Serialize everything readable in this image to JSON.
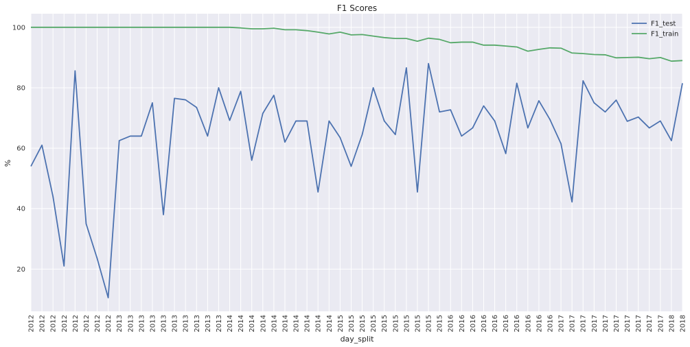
{
  "chart_data": {
    "type": "line",
    "title": "F1 Scores",
    "xlabel": "day_split",
    "ylabel": "%",
    "ylim": [
      6,
      104.5
    ],
    "yticks": [
      20,
      40,
      60,
      80,
      100
    ],
    "grid": true,
    "legend_position": "top-right",
    "categories": [
      "2012",
      "2012",
      "2012",
      "2012",
      "2012",
      "2012",
      "2012",
      "2012",
      "2013",
      "2013",
      "2013",
      "2013",
      "2013",
      "2013",
      "2013",
      "2013",
      "2013",
      "2013",
      "2014",
      "2014",
      "2014",
      "2014",
      "2014",
      "2014",
      "2014",
      "2014",
      "2014",
      "2014",
      "2015",
      "2015",
      "2015",
      "2015",
      "2015",
      "2015",
      "2015",
      "2015",
      "2015",
      "2015",
      "2016",
      "2016",
      "2016",
      "2016",
      "2016",
      "2016",
      "2016",
      "2016",
      "2016",
      "2016",
      "2017",
      "2017",
      "2017",
      "2017",
      "2017",
      "2017",
      "2017",
      "2017",
      "2017",
      "2017",
      "2018",
      "2018"
    ],
    "series": [
      {
        "name": "F1_test",
        "color": "#4c72b0",
        "values": [
          54,
          61,
          44,
          21,
          85.6,
          35,
          23.5,
          10.5,
          62.5,
          64,
          64,
          75,
          38,
          76.5,
          76,
          73.5,
          64,
          80,
          69.2,
          78.8,
          56,
          71.5,
          77.5,
          62,
          69,
          69,
          45.5,
          69,
          63.5,
          54,
          64.5,
          80,
          69,
          64.5,
          86.6,
          45.5,
          88,
          72,
          72.7,
          64,
          66.7,
          74,
          69,
          58.2,
          81.5,
          66.7,
          75.7,
          69.5,
          61.5,
          42.2,
          82.3,
          75,
          72,
          75.9,
          68.9,
          70.3,
          66.7,
          69,
          62.5,
          81.5
        ]
      },
      {
        "name": "F1_train",
        "color": "#55a868",
        "values": [
          100,
          100,
          100,
          100,
          100,
          100,
          100,
          100,
          100,
          100,
          100,
          100,
          100,
          100,
          100,
          100,
          100,
          100,
          100,
          99.8,
          99.5,
          99.5,
          99.7,
          99.2,
          99.2,
          98.9,
          98.4,
          97.8,
          98.4,
          97.5,
          97.6,
          97.1,
          96.6,
          96.3,
          96.3,
          95.4,
          96.4,
          96,
          94.9,
          95.1,
          95.1,
          94.1,
          94.1,
          93.8,
          93.5,
          92.1,
          92.7,
          93.2,
          93.1,
          91.5,
          91.3,
          91,
          90.9,
          89.9,
          90,
          90.1,
          89.6,
          90,
          88.8,
          89
        ]
      }
    ]
  }
}
